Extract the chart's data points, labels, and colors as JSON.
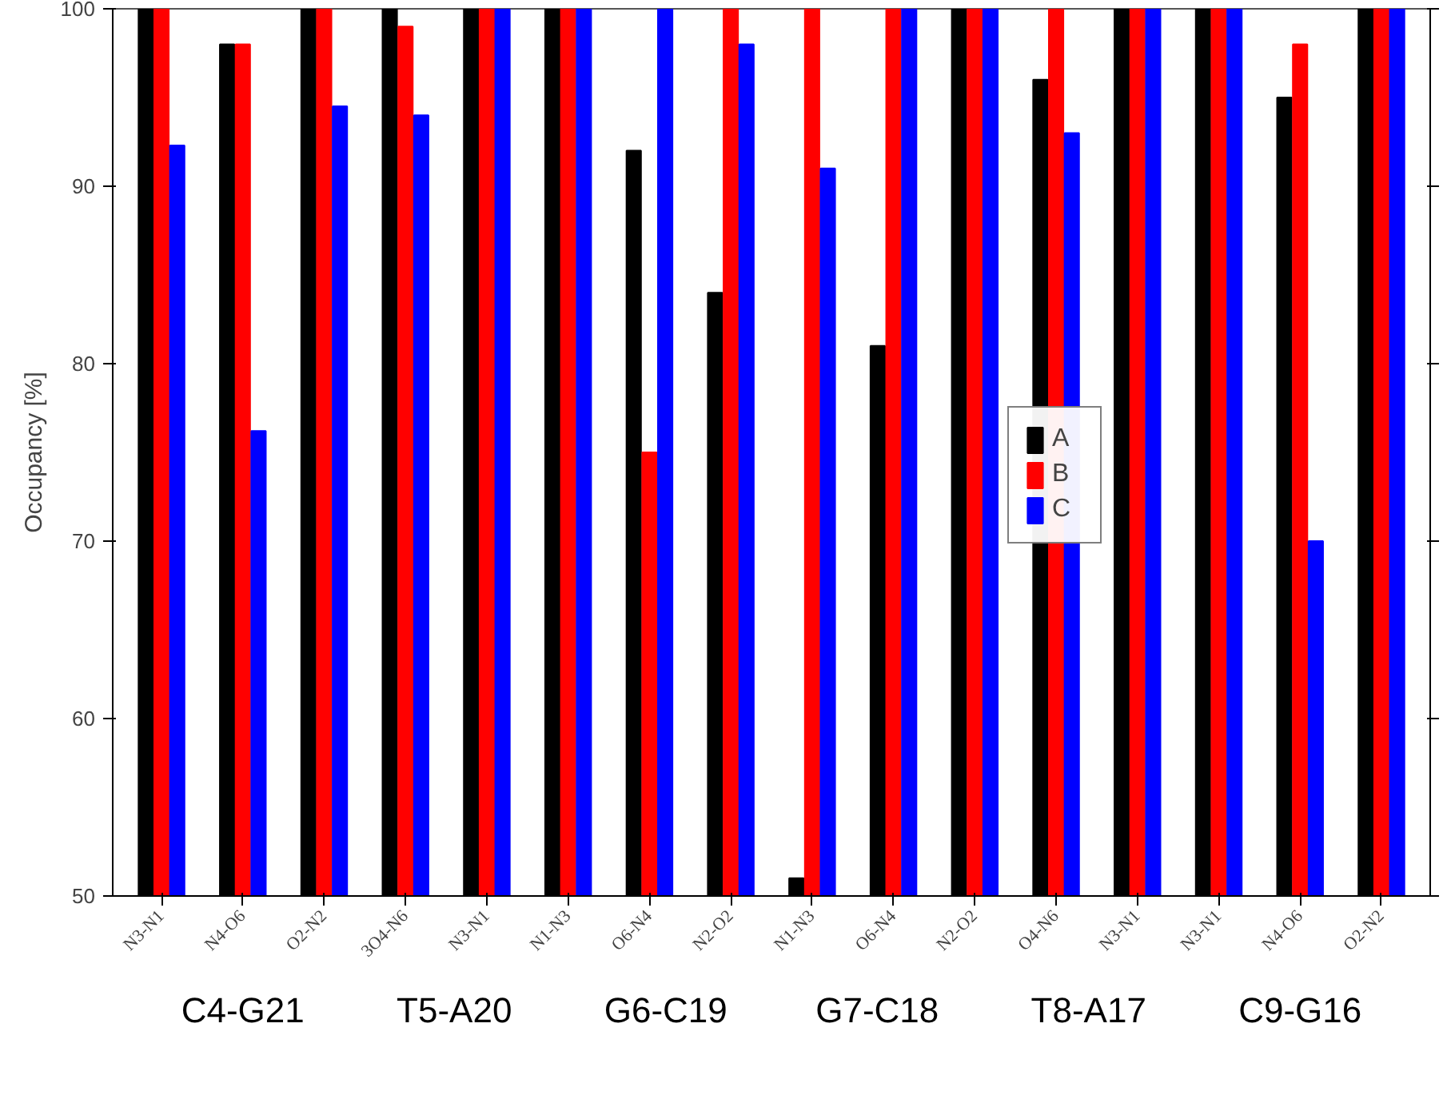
{
  "chart_data": {
    "type": "bar",
    "ylabel": "Occupancy [%]",
    "categories": [
      "N3-N1",
      "N4-O6",
      "O2-N2",
      "3O4-N6",
      "N3-N1",
      "N1-N3",
      "O6-N4",
      "N2-O2",
      "N1-N3",
      "O6-N4",
      "N2-O2",
      "O4-N6",
      "N3-N1",
      "N3-N1",
      "N4-O6",
      "O2-N2"
    ],
    "series": [
      {
        "name": "A",
        "color": "#000000",
        "values": [
          100,
          98,
          100,
          100,
          100,
          100,
          92,
          84,
          51,
          81,
          100,
          96,
          100,
          100,
          95,
          100
        ]
      },
      {
        "name": "B",
        "color": "#ff0000",
        "values": [
          100,
          98,
          100,
          99,
          100,
          100,
          75,
          100,
          100,
          100,
          100,
          100,
          100,
          100,
          98,
          100
        ]
      },
      {
        "name": "C",
        "color": "#0000ff",
        "values": [
          92.3,
          76.2,
          94.5,
          94,
          100,
          100,
          100,
          98,
          91,
          100,
          100,
          93,
          100,
          100,
          70,
          100
        ]
      }
    ],
    "ylim": [
      50,
      100
    ],
    "yticks": [
      50,
      60,
      70,
      80,
      90,
      100
    ],
    "annotations": [
      "C4-G21",
      "T5-A20",
      "G6-C19",
      "G7-C18",
      "T8-A17",
      "C9-G16"
    ],
    "legend": "right",
    "grid": false
  }
}
